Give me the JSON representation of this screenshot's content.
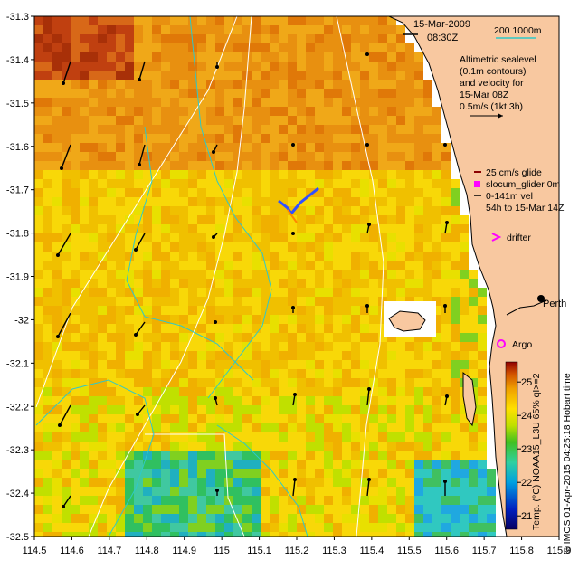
{
  "header": {
    "date": "15-Mar-2009",
    "time": "08:30Z",
    "depth_contours": "200  1000m"
  },
  "legend": {
    "altimetry": [
      "Altimetric sealevel",
      "(0.1m contours)",
      "and velocity for",
      "15-Mar 08Z",
      "0.5m/s (1kt 3h)"
    ],
    "glider": [
      "25 cm/s glide",
      "slocum_glider 0m",
      "0-141m vel",
      "54h to 15-Mar 14Z"
    ],
    "drifter": "drifter",
    "argo": "Argo",
    "city": "Perth"
  },
  "colorbar": {
    "label": "Temp. (°C) NOAA15_L3U 65% qI>=2",
    "ticks": [
      "21",
      "22",
      "23",
      "24",
      "25"
    ],
    "range": [
      20.6,
      25.6
    ]
  },
  "credit": "© IMOS 01-Apr-2015 04:25:18 Hobart time",
  "axes": {
    "x_ticks": [
      "114.5",
      "114.6",
      "114.7",
      "114.8",
      "114.9",
      "115",
      "115.1",
      "115.2",
      "115.3",
      "115.4",
      "115.5",
      "115.6",
      "115.7",
      "115.8",
      "115.9"
    ],
    "y_ticks": [
      "-31.3",
      "-31.4",
      "-31.5",
      "-31.6",
      "-31.7",
      "-31.8",
      "-31.9",
      "-32",
      "-32.1",
      "-32.2",
      "-32.3",
      "-32.4",
      "-32.5"
    ],
    "xlim": [
      114.5,
      115.9
    ],
    "ylim": [
      -32.5,
      -31.3
    ]
  },
  "colors": {
    "land": "#f8c8a0",
    "contour": "#2fc8c8",
    "bathymetry": "#ffffff",
    "glider": "#ff8800",
    "drifter": "#ff00ff",
    "argo": "#ff00ff"
  }
}
